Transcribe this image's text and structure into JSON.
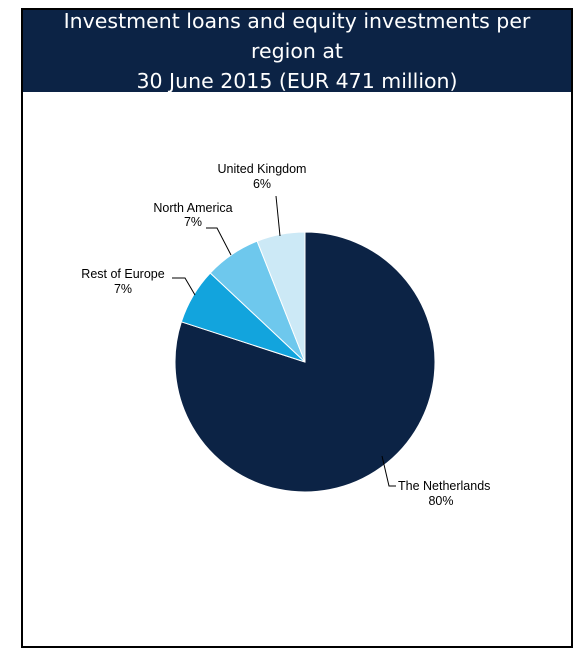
{
  "chart_data": {
    "type": "pie",
    "title_lines": [
      "Investment loans and equity investments per region at",
      "30 June 2015 (EUR 471 million)"
    ],
    "slices": [
      {
        "label": "The Netherlands",
        "value": 80,
        "value_label": "80%",
        "color": "#0c2345"
      },
      {
        "label": "Rest of Europe",
        "value": 7,
        "value_label": "7%",
        "color": "#12a4dd"
      },
      {
        "label": "North America",
        "value": 7,
        "value_label": "7%",
        "color": "#6ec8ed"
      },
      {
        "label": "United Kingdom",
        "value": 6,
        "value_label": "6%",
        "color": "#cce9f6"
      }
    ]
  }
}
